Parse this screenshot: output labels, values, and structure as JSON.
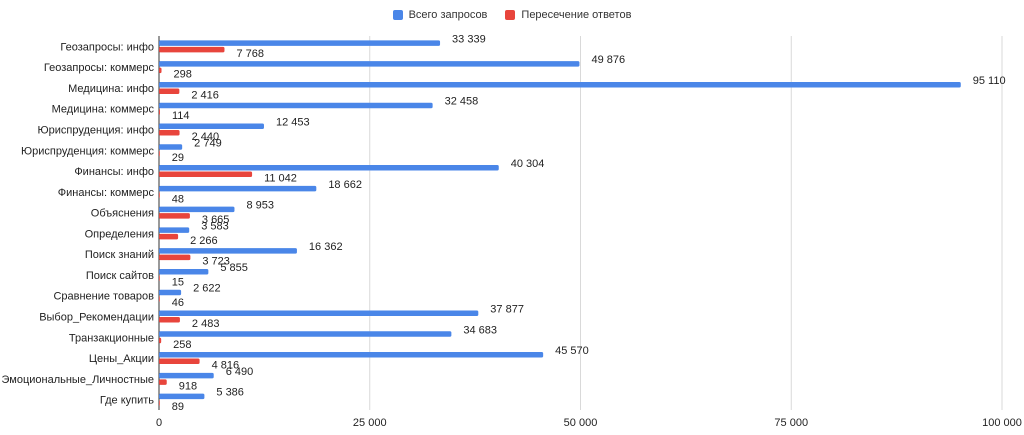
{
  "colors": {
    "series1": "#4a86e8",
    "series2": "#e8453c",
    "grid": "#d9d9d9"
  },
  "legend": {
    "placement": "top-center"
  },
  "chart_data": {
    "type": "bar",
    "orientation": "horizontal",
    "categories": [
      "Геозапросы: инфо",
      "Геозапросы: коммерс",
      "Медицина: инфо",
      "Медицина: коммерс",
      "Юриспруденция: инфо",
      "Юриспруденция: коммерс",
      "Финансы: инфо",
      "Финансы: коммерс",
      "Объяснения",
      "Определения",
      "Поиск знаний",
      "Поиск сайтов",
      "Сравнение товаров",
      "Выбор_Рекомендации",
      "Транзакционные",
      "Цены_Акции",
      "Эмоциональные_Личностные",
      "Где купить"
    ],
    "series": [
      {
        "name": "Всего запросов",
        "values": [
          33339,
          49876,
          95110,
          32458,
          12453,
          2749,
          40304,
          18662,
          8953,
          3583,
          16362,
          5855,
          2622,
          37877,
          34683,
          45570,
          6490,
          5386
        ],
        "labels": [
          "33 339",
          "49 876",
          "95 110",
          "32 458",
          "12 453",
          "2 749",
          "40 304",
          "18 662",
          "8 953",
          "3 583",
          "16 362",
          "5 855",
          "2 622",
          "37 877",
          "34 683",
          "45 570",
          "6 490",
          "5 386"
        ]
      },
      {
        "name": "Пересечение ответов",
        "values": [
          7768,
          298,
          2416,
          114,
          2440,
          29,
          11042,
          48,
          3665,
          2266,
          3723,
          15,
          46,
          2483,
          258,
          4816,
          918,
          89
        ],
        "labels": [
          "7 768",
          "298",
          "2 416",
          "114",
          "2 440",
          "29",
          "11 042",
          "48",
          "3 665",
          "2 266",
          "3 723",
          "15",
          "46",
          "2 483",
          "258",
          "4 816",
          "918",
          "89"
        ]
      }
    ],
    "xlim": [
      0,
      100000
    ],
    "xticks": [
      0,
      25000,
      50000,
      75000,
      100000
    ],
    "xtick_labels": [
      "0",
      "25 000",
      "50 000",
      "75 000",
      "100 000"
    ],
    "grid": true,
    "title": "",
    "xlabel": "",
    "ylabel": ""
  }
}
